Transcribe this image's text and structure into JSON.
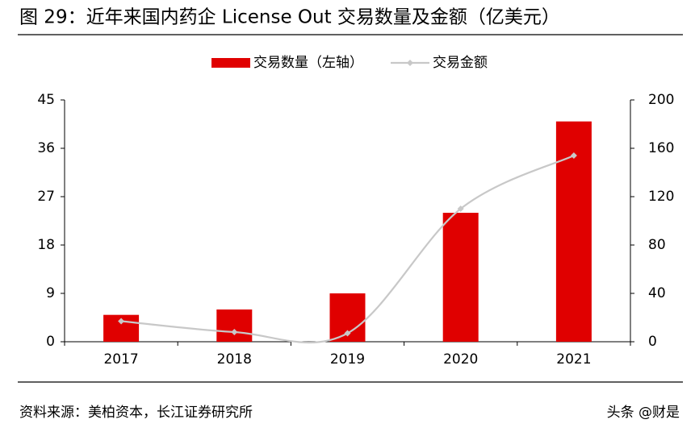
{
  "chart_data": {
    "type": "bar",
    "title": "图 29：近年来国内药企 License Out 交易数量及金额（亿美元）",
    "categories": [
      "2017",
      "2018",
      "2019",
      "2020",
      "2021"
    ],
    "series": [
      {
        "name": "交易数量（左轴）",
        "type": "bar",
        "color": "#e00000",
        "values": [
          5,
          6,
          9,
          24,
          41
        ]
      },
      {
        "name": "交易金额",
        "type": "line",
        "axis": "y2",
        "color": "#c8c8c8",
        "values": [
          17,
          8,
          7,
          110,
          154
        ]
      }
    ],
    "ylim": [
      0,
      45
    ],
    "yticks": [
      0,
      9,
      18,
      27,
      36,
      45
    ],
    "y2lim": [
      0,
      200
    ],
    "y2ticks": [
      0,
      40,
      80,
      120,
      160,
      200
    ],
    "grid": false,
    "legend": "top"
  },
  "source": "资料来源：美柏资本，长江证券研究所",
  "watermark": "头条 @财是"
}
